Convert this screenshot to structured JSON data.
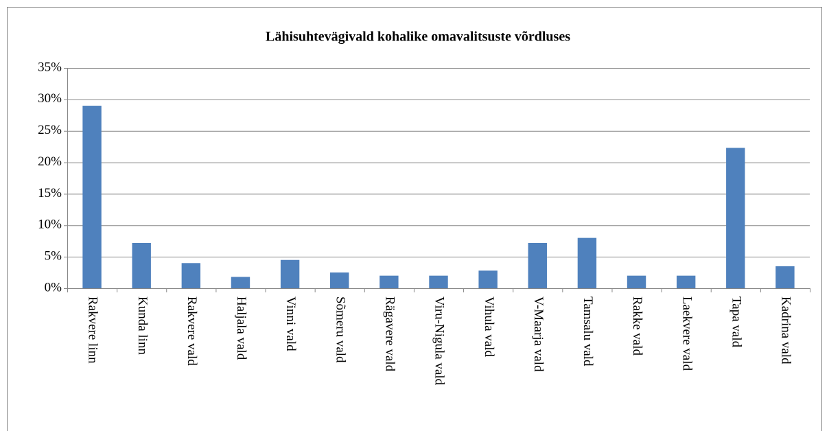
{
  "chart_data": {
    "type": "bar",
    "title": "Lähisuhtevägivald kohalike omavalitsuste võrdluses",
    "categories": [
      "Rakvere linn",
      "Kunda linn",
      "Rakvere vald",
      "Haljala vald",
      "Vinni vald",
      "Sõmeru vald",
      "Rägavere vald",
      "Viru-Nigula vald",
      "Vihula vald",
      "V-Maarja vald",
      "Tamsalu vald",
      "Rakke vald",
      "Laekvere vald",
      "Tapa vald",
      "Kadrina vald"
    ],
    "values": [
      29,
      7.2,
      4,
      1.8,
      4.5,
      2.5,
      2,
      2,
      2.8,
      7.2,
      8,
      2,
      2,
      22.3,
      3.5
    ],
    "color": "#4f81bd",
    "ylim": [
      0,
      35
    ],
    "yticks": [
      {
        "value": 0,
        "label": "0%"
      },
      {
        "value": 5,
        "label": "5%"
      },
      {
        "value": 10,
        "label": "10%"
      },
      {
        "value": 15,
        "label": "15%"
      },
      {
        "value": 20,
        "label": "20%"
      },
      {
        "value": 25,
        "label": "25%"
      },
      {
        "value": 30,
        "label": "30%"
      },
      {
        "value": 35,
        "label": "35%"
      }
    ],
    "grid": true
  }
}
